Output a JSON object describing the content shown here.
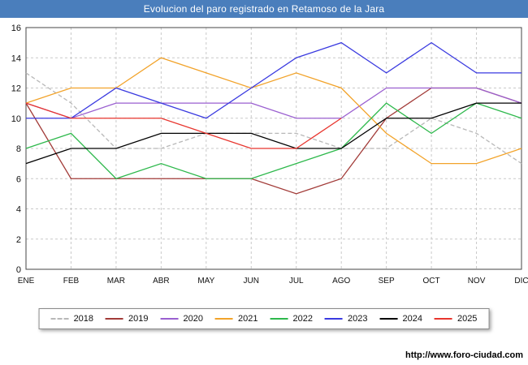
{
  "title": "Evolucion del paro registrado en Retamoso de la Jara",
  "colors": {
    "titlebar": "#4a7ebc",
    "grid": "#c9c9c9",
    "border": "#444444",
    "background": "#ffffff",
    "text": "#111111"
  },
  "footer": {
    "url": "http://www.foro-ciudad.com"
  },
  "chart_data": {
    "type": "line",
    "title": "Evolucion del paro registrado en Retamoso de la Jara",
    "categories": [
      "ENE",
      "FEB",
      "MAR",
      "ABR",
      "MAY",
      "JUN",
      "JUL",
      "AGO",
      "SEP",
      "OCT",
      "NOV",
      "DIC"
    ],
    "ylim": [
      0,
      16
    ],
    "ytick_step": 2,
    "yticks": [
      0,
      2,
      4,
      6,
      8,
      10,
      12,
      14,
      16
    ],
    "grid": true,
    "legend_position": "bottom",
    "series": [
      {
        "name": "2018",
        "color": "#b8b8b8",
        "dash": "5,3",
        "values": [
          13,
          11,
          8,
          8,
          9,
          9,
          9,
          8,
          8,
          10,
          9,
          7
        ]
      },
      {
        "name": "2019",
        "color": "#a23b38",
        "dash": "",
        "values": [
          11,
          6,
          6,
          6,
          6,
          6,
          5,
          6,
          10,
          12,
          12,
          11
        ]
      },
      {
        "name": "2020",
        "color": "#9a5fd0",
        "dash": "",
        "values": [
          11,
          10,
          11,
          11,
          11,
          11,
          10,
          10,
          12,
          12,
          12,
          11
        ]
      },
      {
        "name": "2021",
        "color": "#f2a32a",
        "dash": "",
        "values": [
          11,
          12,
          12,
          14,
          13,
          12,
          13,
          12,
          9,
          7,
          7,
          8
        ]
      },
      {
        "name": "2022",
        "color": "#2db84b",
        "dash": "",
        "values": [
          8,
          9,
          6,
          7,
          6,
          6,
          7,
          8,
          11,
          9,
          11,
          10
        ]
      },
      {
        "name": "2023",
        "color": "#3a3ae0",
        "dash": "",
        "values": [
          10,
          10,
          12,
          11,
          10,
          12,
          14,
          15,
          13,
          15,
          13,
          13
        ]
      },
      {
        "name": "2024",
        "color": "#000000",
        "dash": "",
        "values": [
          7,
          8,
          8,
          9,
          9,
          9,
          8,
          8,
          10,
          10,
          11,
          11
        ]
      },
      {
        "name": "2025",
        "color": "#e8352e",
        "dash": "",
        "values": [
          11,
          10,
          10,
          10,
          9,
          8,
          8,
          10
        ]
      }
    ]
  }
}
